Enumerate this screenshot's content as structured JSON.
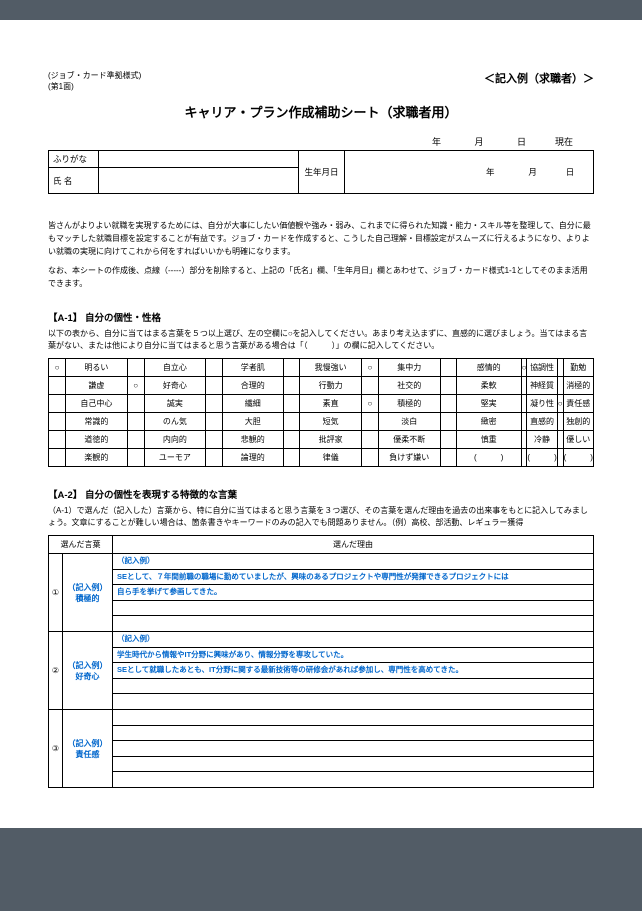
{
  "header": {
    "form_label_1": "(ジョブ・カード準拠様式)",
    "form_label_2": "(第1面)",
    "example_label": "＜記入例（求職者）＞"
  },
  "title": "キャリア・プラン作成補助シート（求職者用）",
  "date_labels": {
    "year": "年",
    "month": "月",
    "day": "日",
    "current": "現在"
  },
  "name_table": {
    "furigana": "ふりがな",
    "name_label": "氏 名",
    "dob_label": "生年月日",
    "dob_year": "年",
    "dob_month": "月",
    "dob_day": "日"
  },
  "intro": {
    "p1": "皆さんがよりよい就職を実現するためには、自分が大事にしたい価値観や強み・弱み、これまでに得られた知識・能力・スキル等を整理して、自分に最もマッチした就職目標を設定することが有益です。ジョブ・カードを作成すると、こうした自己理解・目標設定がスムーズに行えるようになり、よりよい就職の実現に向けてこれから何をすればいいかも明確になります。",
    "p2": "なお、本シートの作成後、点線（-----）部分を削除すると、上記の「氏名」欄、「生年月日」欄とあわせて、ジョブ・カード様式1-1としてそのまま活用できます。"
  },
  "a1": {
    "title": "【A-1】 自分の個性・性格",
    "desc": "以下の表から、自分に当てはまる言葉を５つ以上選び、左の空欄に○を記入してください。あまり考え込まずに、直感的に選びましょう。当てはまる言葉がない、または他により自分に当てはまると思う言葉がある場合は「（　　　）」の欄に記入してください。",
    "rows": [
      [
        {
          "m": "○",
          "t": "明るい"
        },
        {
          "m": "",
          "t": "自立心"
        },
        {
          "m": "",
          "t": "学者肌"
        },
        {
          "m": "",
          "t": "我慢強い"
        },
        {
          "m": "○",
          "t": "集中力"
        },
        {
          "m": "",
          "t": "感情的"
        },
        {
          "m": "○",
          "t": "協調性"
        },
        {
          "m": "",
          "t": "勤勉"
        }
      ],
      [
        {
          "m": "",
          "t": "謙虚"
        },
        {
          "m": "○",
          "t": "好奇心"
        },
        {
          "m": "",
          "t": "合理的"
        },
        {
          "m": "",
          "t": "行動力"
        },
        {
          "m": "",
          "t": "社交的"
        },
        {
          "m": "",
          "t": "柔軟"
        },
        {
          "m": "",
          "t": "神経質"
        },
        {
          "m": "",
          "t": "消極的"
        }
      ],
      [
        {
          "m": "",
          "t": "自己中心"
        },
        {
          "m": "",
          "t": "誠実"
        },
        {
          "m": "",
          "t": "繊細"
        },
        {
          "m": "",
          "t": "素直"
        },
        {
          "m": "○",
          "t": "積極的"
        },
        {
          "m": "",
          "t": "堅実"
        },
        {
          "m": "",
          "t": "凝り性"
        },
        {
          "m": "○",
          "t": "責任感"
        }
      ],
      [
        {
          "m": "",
          "t": "常識的"
        },
        {
          "m": "",
          "t": "のん気"
        },
        {
          "m": "",
          "t": "大胆"
        },
        {
          "m": "",
          "t": "短気"
        },
        {
          "m": "",
          "t": "淡白"
        },
        {
          "m": "",
          "t": "緻密"
        },
        {
          "m": "",
          "t": "直感的"
        },
        {
          "m": "",
          "t": "独創的"
        }
      ],
      [
        {
          "m": "",
          "t": "道徳的"
        },
        {
          "m": "",
          "t": "内向的"
        },
        {
          "m": "",
          "t": "悲観的"
        },
        {
          "m": "",
          "t": "批評家"
        },
        {
          "m": "",
          "t": "優柔不断"
        },
        {
          "m": "",
          "t": "慎重"
        },
        {
          "m": "",
          "t": "冷静"
        },
        {
          "m": "",
          "t": "優しい"
        }
      ],
      [
        {
          "m": "",
          "t": "楽観的"
        },
        {
          "m": "",
          "t": "ユーモア"
        },
        {
          "m": "",
          "t": "論理的"
        },
        {
          "m": "",
          "t": "律儀"
        },
        {
          "m": "",
          "t": "負けず嫌い"
        },
        {
          "m": "",
          "t": "(　　　)"
        },
        {
          "m": "",
          "t": "(　　　)"
        },
        {
          "m": "",
          "t": "(　　　)"
        }
      ]
    ]
  },
  "a2": {
    "title": "【A-2】 自分の個性を表現する特徴的な言葉",
    "desc": "（A-1）で選んだ（記入した）言葉から、特に自分に当てはまると思う言葉を３つ選び、その言葉を選んだ理由を過去の出来事をもとに記入してみましょう。文章にすることが難しい場合は、箇条書きやキーワードのみの記入でも問題ありません。（例）高校、部活動、レギュラー獲得",
    "col1": "選んだ言葉",
    "col2": "選んだ理由",
    "rows": [
      {
        "idx": "①",
        "word_pre": "（記入例）",
        "word": "積極的",
        "lines": [
          {
            "cls": "ex-label",
            "txt": "（記入例）"
          },
          {
            "cls": "blue",
            "txt": "SEとして、７年間前職の職場に勤めていましたが、興味のあるプロジェクトや専門性が発揮できるプロジェクトには"
          },
          {
            "cls": "blue",
            "txt": "自ら手を挙げて参画してきた。"
          },
          {
            "cls": "",
            "txt": ""
          },
          {
            "cls": "",
            "txt": ""
          }
        ]
      },
      {
        "idx": "②",
        "word_pre": "（記入例）",
        "word": "好奇心",
        "lines": [
          {
            "cls": "ex-label",
            "txt": "（記入例）"
          },
          {
            "cls": "blue",
            "txt": "学生時代から情報やIT分野に興味があり、情報分野を専攻していた。"
          },
          {
            "cls": "blue",
            "txt": "SEとして就職したあとも、IT分野に関する最新技術等の研修会があれば参加し、専門性を高めてきた。"
          },
          {
            "cls": "",
            "txt": ""
          },
          {
            "cls": "",
            "txt": ""
          }
        ]
      },
      {
        "idx": "③",
        "word_pre": "（記入例）",
        "word": "責任感",
        "lines": [
          {
            "cls": "",
            "txt": ""
          },
          {
            "cls": "",
            "txt": ""
          },
          {
            "cls": "",
            "txt": ""
          },
          {
            "cls": "",
            "txt": ""
          },
          {
            "cls": "",
            "txt": ""
          }
        ]
      }
    ]
  }
}
